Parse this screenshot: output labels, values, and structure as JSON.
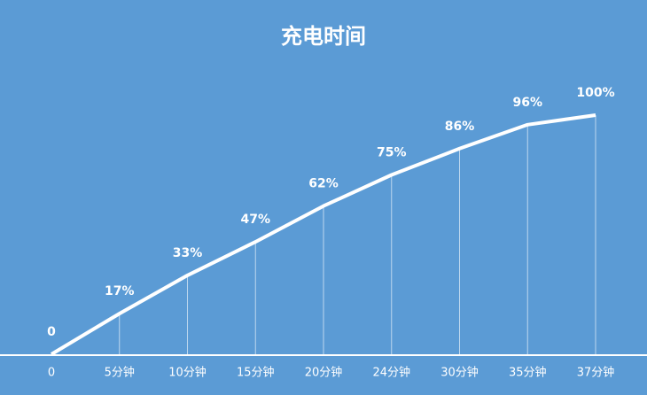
{
  "chart_data": {
    "type": "line",
    "title": "充电时间",
    "categories": [
      "0",
      "5分钟",
      "10分钟",
      "15分钟",
      "20分钟",
      "24分钟",
      "30分钟",
      "35分钟",
      "37分钟"
    ],
    "values": [
      0,
      17,
      33,
      47,
      62,
      75,
      86,
      96,
      100
    ],
    "value_labels": [
      "0",
      "17%",
      "33%",
      "47%",
      "62%",
      "75%",
      "86%",
      "96%",
      "100%"
    ],
    "color": "#ffffff"
  }
}
